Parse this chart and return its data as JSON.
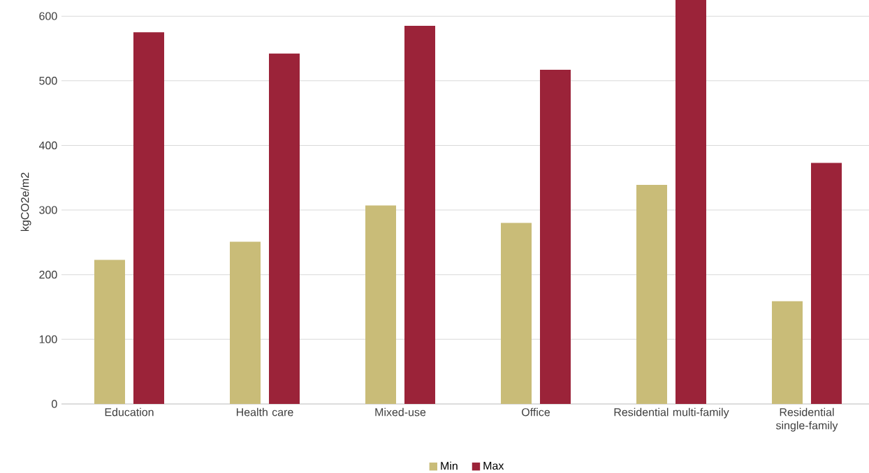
{
  "chart_data": {
    "type": "bar",
    "ylabel": "kgCO2e/m2",
    "categories": [
      "Education",
      "Health care",
      "Mixed-use",
      "Office",
      "Residential multi-family",
      "Residential single-family"
    ],
    "series": [
      {
        "name": "Min",
        "color": "#c9bc78",
        "values": [
          223,
          251,
          307,
          280,
          339,
          159
        ]
      },
      {
        "name": "Max",
        "color": "#9b2339",
        "values": [
          575,
          542,
          585,
          517,
          625,
          373
        ]
      }
    ],
    "ylim": [
      0,
      625
    ],
    "yticks": [
      0,
      100,
      200,
      300,
      400,
      500,
      600
    ],
    "grid": "y",
    "legend": "bottom"
  }
}
